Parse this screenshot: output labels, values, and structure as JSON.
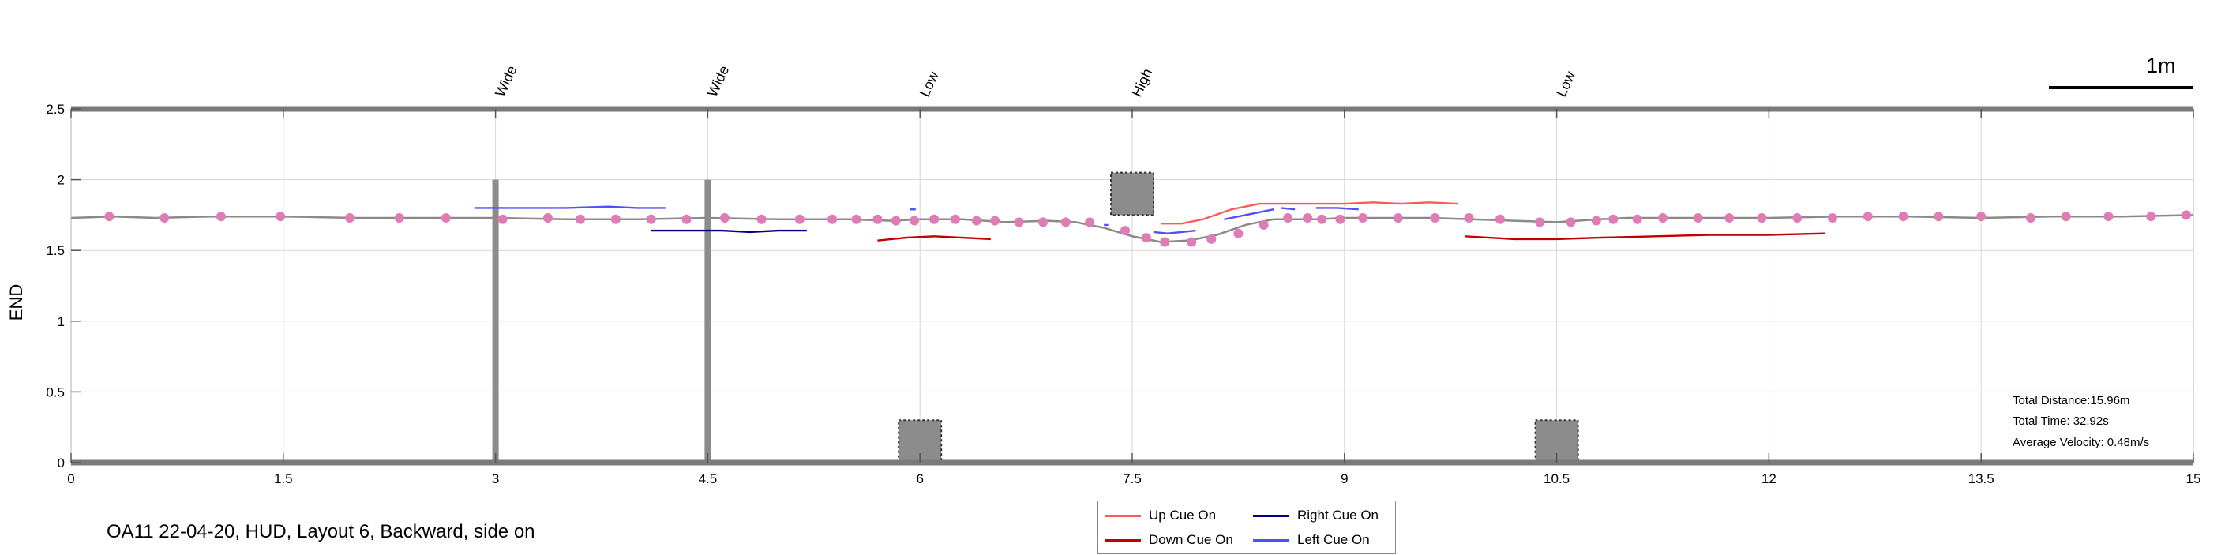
{
  "caption": "OA11 22-04-20, HUD, Layout 6, Backward, side on",
  "scale_bar_label": "1m",
  "stats": {
    "total_distance": "Total Distance:15.96m",
    "total_time": "Total Time: 32.92s",
    "average_velocity": "Average Velocity: 0.48m/s"
  },
  "colors": {
    "path": "#8a8a8a",
    "marker": "#e07cb5",
    "up_cue": "#ff5a5a",
    "down_cue": "#c00000",
    "right_cue": "#000080",
    "left_cue": "#5050ff",
    "obstacle": "#8c8c8c",
    "axis_bar": "#7a7a7a"
  },
  "legend": {
    "up": "Up Cue On",
    "right": "Right Cue On",
    "down": "Down Cue On",
    "left": "Left Cue On"
  },
  "chart_data": {
    "type": "line",
    "title": "",
    "xlabel": "",
    "ylabel": "END",
    "xlim": [
      0,
      15
    ],
    "ylim": [
      0,
      2.5
    ],
    "xticks": [
      0,
      1.5,
      3,
      4.5,
      6,
      7.5,
      9,
      10.5,
      12,
      13.5,
      15
    ],
    "xtick_labels": [
      "0",
      "1.5",
      "3",
      "4.5",
      "6",
      "7.5",
      "9",
      "10.5",
      "12",
      "13.5",
      "15"
    ],
    "yticks": [
      0,
      0.5,
      1,
      1.5,
      2,
      2.5
    ],
    "ytick_labels": [
      "0",
      "0.5",
      "1",
      "1.5",
      "2",
      "2.5"
    ],
    "grid": true,
    "legend_position": "bottom-center",
    "path": [
      [
        0,
        1.73
      ],
      [
        0.3,
        1.74
      ],
      [
        0.6,
        1.73
      ],
      [
        1.0,
        1.74
      ],
      [
        1.5,
        1.74
      ],
      [
        2.0,
        1.73
      ],
      [
        2.5,
        1.73
      ],
      [
        3.0,
        1.73
      ],
      [
        3.5,
        1.72
      ],
      [
        4.0,
        1.72
      ],
      [
        4.5,
        1.73
      ],
      [
        5.0,
        1.72
      ],
      [
        5.5,
        1.72
      ],
      [
        5.8,
        1.71
      ],
      [
        6.0,
        1.72
      ],
      [
        6.3,
        1.72
      ],
      [
        6.6,
        1.7
      ],
      [
        6.9,
        1.71
      ],
      [
        7.1,
        1.7
      ],
      [
        7.3,
        1.66
      ],
      [
        7.5,
        1.6
      ],
      [
        7.7,
        1.56
      ],
      [
        7.9,
        1.57
      ],
      [
        8.1,
        1.61
      ],
      [
        8.3,
        1.68
      ],
      [
        8.5,
        1.72
      ],
      [
        8.8,
        1.72
      ],
      [
        9.0,
        1.73
      ],
      [
        9.3,
        1.73
      ],
      [
        9.6,
        1.73
      ],
      [
        9.9,
        1.72
      ],
      [
        10.2,
        1.71
      ],
      [
        10.5,
        1.7
      ],
      [
        10.8,
        1.72
      ],
      [
        11.0,
        1.73
      ],
      [
        11.5,
        1.73
      ],
      [
        12.0,
        1.73
      ],
      [
        12.5,
        1.74
      ],
      [
        13.0,
        1.74
      ],
      [
        13.5,
        1.73
      ],
      [
        14.0,
        1.74
      ],
      [
        14.5,
        1.74
      ],
      [
        15.0,
        1.75
      ]
    ],
    "markers": [
      [
        0.27,
        1.74
      ],
      [
        0.66,
        1.73
      ],
      [
        1.06,
        1.74
      ],
      [
        1.48,
        1.74
      ],
      [
        1.97,
        1.73
      ],
      [
        2.32,
        1.73
      ],
      [
        2.65,
        1.73
      ],
      [
        3.05,
        1.72
      ],
      [
        3.37,
        1.73
      ],
      [
        3.6,
        1.72
      ],
      [
        3.85,
        1.72
      ],
      [
        4.1,
        1.72
      ],
      [
        4.35,
        1.72
      ],
      [
        4.62,
        1.73
      ],
      [
        4.88,
        1.72
      ],
      [
        5.15,
        1.72
      ],
      [
        5.38,
        1.72
      ],
      [
        5.55,
        1.72
      ],
      [
        5.7,
        1.72
      ],
      [
        5.83,
        1.71
      ],
      [
        5.96,
        1.71
      ],
      [
        6.1,
        1.72
      ],
      [
        6.25,
        1.72
      ],
      [
        6.4,
        1.71
      ],
      [
        6.53,
        1.71
      ],
      [
        6.7,
        1.7
      ],
      [
        6.87,
        1.7
      ],
      [
        7.03,
        1.7
      ],
      [
        7.2,
        1.7
      ],
      [
        7.45,
        1.64
      ],
      [
        7.6,
        1.59
      ],
      [
        7.73,
        1.56
      ],
      [
        7.92,
        1.56
      ],
      [
        8.06,
        1.58
      ],
      [
        8.25,
        1.62
      ],
      [
        8.43,
        1.68
      ],
      [
        8.6,
        1.73
      ],
      [
        8.74,
        1.73
      ],
      [
        8.84,
        1.72
      ],
      [
        8.97,
        1.72
      ],
      [
        9.13,
        1.73
      ],
      [
        9.38,
        1.73
      ],
      [
        9.64,
        1.73
      ],
      [
        9.88,
        1.73
      ],
      [
        10.1,
        1.72
      ],
      [
        10.38,
        1.7
      ],
      [
        10.6,
        1.7
      ],
      [
        10.78,
        1.71
      ],
      [
        10.9,
        1.72
      ],
      [
        11.07,
        1.72
      ],
      [
        11.25,
        1.73
      ],
      [
        11.5,
        1.73
      ],
      [
        11.72,
        1.73
      ],
      [
        11.95,
        1.73
      ],
      [
        12.2,
        1.73
      ],
      [
        12.45,
        1.73
      ],
      [
        12.7,
        1.74
      ],
      [
        12.95,
        1.74
      ],
      [
        13.2,
        1.74
      ],
      [
        13.5,
        1.74
      ],
      [
        13.85,
        1.73
      ],
      [
        14.1,
        1.74
      ],
      [
        14.4,
        1.74
      ],
      [
        14.7,
        1.74
      ],
      [
        14.95,
        1.75
      ]
    ],
    "cues": {
      "right": [
        [
          [
            4.1,
            1.64
          ],
          [
            4.4,
            1.64
          ],
          [
            4.6,
            1.64
          ],
          [
            4.8,
            1.63
          ],
          [
            5.0,
            1.64
          ],
          [
            5.2,
            1.64
          ]
        ]
      ],
      "left": [
        [
          [
            2.85,
            1.8
          ],
          [
            3.2,
            1.8
          ],
          [
            3.5,
            1.8
          ],
          [
            3.8,
            1.81
          ],
          [
            4.0,
            1.8
          ],
          [
            4.2,
            1.8
          ]
        ],
        [
          [
            5.93,
            1.79
          ],
          [
            5.97,
            1.79
          ]
        ],
        [
          [
            7.3,
            1.68
          ],
          [
            7.33,
            1.68
          ]
        ],
        [
          [
            7.65,
            1.63
          ],
          [
            7.75,
            1.62
          ],
          [
            7.85,
            1.63
          ],
          [
            7.95,
            1.64
          ]
        ],
        [
          [
            8.15,
            1.72
          ],
          [
            8.35,
            1.76
          ],
          [
            8.5,
            1.79
          ]
        ],
        [
          [
            8.55,
            1.8
          ],
          [
            8.65,
            1.79
          ]
        ],
        [
          [
            8.8,
            1.8
          ],
          [
            8.95,
            1.8
          ],
          [
            9.1,
            1.79
          ]
        ]
      ],
      "up": [
        [
          [
            7.7,
            1.69
          ],
          [
            7.85,
            1.69
          ],
          [
            8.0,
            1.72
          ],
          [
            8.2,
            1.79
          ],
          [
            8.4,
            1.83
          ],
          [
            8.6,
            1.83
          ],
          [
            9.0,
            1.83
          ],
          [
            9.2,
            1.84
          ],
          [
            9.4,
            1.83
          ],
          [
            9.6,
            1.84
          ],
          [
            9.8,
            1.83
          ]
        ]
      ],
      "down": [
        [
          [
            5.7,
            1.57
          ],
          [
            5.9,
            1.59
          ],
          [
            6.1,
            1.6
          ],
          [
            6.3,
            1.59
          ],
          [
            6.5,
            1.58
          ]
        ],
        [
          [
            9.85,
            1.6
          ],
          [
            10.2,
            1.58
          ],
          [
            10.5,
            1.58
          ],
          [
            10.8,
            1.59
          ],
          [
            11.2,
            1.6
          ],
          [
            11.6,
            1.61
          ],
          [
            12.0,
            1.61
          ],
          [
            12.4,
            1.62
          ]
        ]
      ]
    },
    "obstacles": [
      {
        "label": "Wide",
        "kind": "pole",
        "x": 3.0
      },
      {
        "label": "Wide",
        "kind": "pole",
        "x": 4.5
      },
      {
        "label": "Low",
        "kind": "box",
        "x": 6.0
      },
      {
        "label": "High",
        "kind": "box",
        "x": 7.5
      },
      {
        "label": "Low",
        "kind": "box",
        "x": 10.5
      }
    ]
  }
}
